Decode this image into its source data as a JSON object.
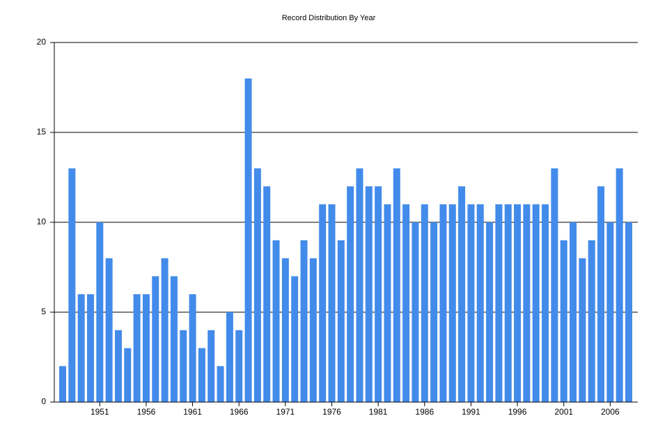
{
  "chart_data": {
    "type": "bar",
    "title": "Record Distribution By Year",
    "categories": [
      null,
      null,
      null,
      null,
      "1951",
      null,
      null,
      null,
      null,
      "1956",
      null,
      null,
      null,
      null,
      "1961",
      null,
      null,
      null,
      null,
      "1966",
      null,
      null,
      null,
      null,
      "1971",
      null,
      null,
      null,
      null,
      "1976",
      null,
      null,
      null,
      null,
      "1981",
      null,
      null,
      null,
      null,
      "1986",
      null,
      null,
      null,
      null,
      "1991",
      null,
      null,
      null,
      null,
      "1996",
      null,
      null,
      null,
      null,
      "2001",
      null,
      null,
      null,
      null,
      "2006",
      null,
      null
    ],
    "values": [
      2,
      13,
      6,
      6,
      10,
      8,
      4,
      3,
      6,
      6,
      7,
      8,
      7,
      4,
      6,
      3,
      4,
      2,
      5,
      4,
      18,
      13,
      12,
      9,
      8,
      7,
      9,
      8,
      11,
      11,
      9,
      12,
      13,
      12,
      12,
      11,
      13,
      11,
      10,
      11,
      10,
      11,
      11,
      12,
      11,
      11,
      10,
      11,
      11,
      11,
      11,
      11,
      11,
      13,
      9,
      10,
      8,
      9,
      12,
      10,
      13,
      10
    ],
    "color": "#428bea",
    "ylim": [
      0,
      20
    ],
    "yticks": [
      0,
      5,
      10,
      15,
      20
    ],
    "grid": true
  }
}
